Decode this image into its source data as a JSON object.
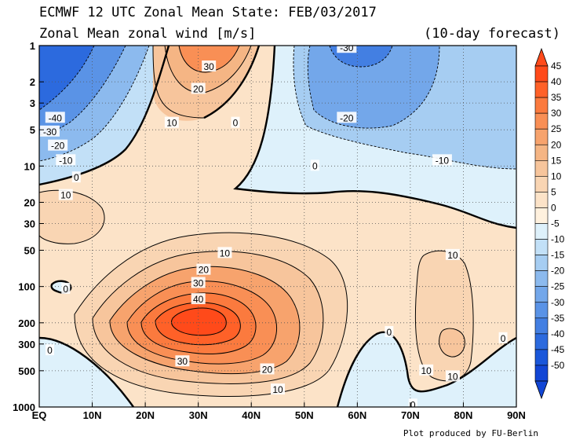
{
  "header": {
    "title": "ECMWF 12 UTC Zonal Mean State: FEB/03/2017",
    "subtitle": "Zonal Mean zonal wind [m/s]",
    "forecast": "(10-day forecast)"
  },
  "footer": {
    "credit": "Plot produced by FU-Berlin"
  },
  "chart_data": {
    "type": "heatmap",
    "x_ticks": [
      "EQ",
      "10N",
      "20N",
      "30N",
      "40N",
      "50N",
      "60N",
      "70N",
      "80N",
      "90N"
    ],
    "x_values": [
      0,
      10,
      20,
      30,
      40,
      50,
      60,
      70,
      80,
      90
    ],
    "xlim": [
      0,
      90
    ],
    "y_ticks": [
      "1",
      "2",
      "3",
      "5",
      "10",
      "20",
      "30",
      "50",
      "100",
      "200",
      "300",
      "500",
      "1000"
    ],
    "y_values": [
      1,
      2,
      3,
      5,
      10,
      20,
      30,
      50,
      100,
      200,
      300,
      500,
      1000
    ],
    "ylim": [
      1,
      1000
    ],
    "y_scale": "log",
    "y_inverted": true,
    "grid": "dotted",
    "colorbar": {
      "labels": [
        "45",
        "40",
        "35",
        "30",
        "25",
        "20",
        "15",
        "10",
        "5",
        "0",
        "-5",
        "-10",
        "-15",
        "-20",
        "-25",
        "-30",
        "-35",
        "-40",
        "-45",
        "-50"
      ],
      "colors": [
        "#ff4a1a",
        "#ff6128",
        "#fb7a3e",
        "#f98f55",
        "#f7a36d",
        "#f5b584",
        "#f7c59c",
        "#f9d5b3",
        "#fce3c8",
        "#fff1de",
        "#def1fb",
        "#c2e0f7",
        "#a6cdf2",
        "#8cbaee",
        "#73a7ea",
        "#5a93e6",
        "#437fe2",
        "#2c6ade",
        "#1a57da",
        "#1246d5"
      ]
    },
    "contour_labels": [
      {
        "text": "30",
        "lat": 32,
        "p": 1.5
      },
      {
        "text": "20",
        "lat": 30,
        "p": 2.3
      },
      {
        "text": "10",
        "lat": 25,
        "p": 4.4
      },
      {
        "text": "0",
        "lat": 37,
        "p": 4.4
      },
      {
        "text": "-30",
        "lat": 58,
        "p": 1.05
      },
      {
        "text": "-20",
        "lat": 58,
        "p": 4.0
      },
      {
        "text": "-10",
        "lat": 76,
        "p": 9.0
      },
      {
        "text": "-40",
        "lat": 3,
        "p": 4.0
      },
      {
        "text": "-30",
        "lat": 2,
        "p": 5.2
      },
      {
        "text": "-20",
        "lat": 3.5,
        "p": 6.8
      },
      {
        "text": "-10",
        "lat": 5,
        "p": 9.0
      },
      {
        "text": "0",
        "lat": 7,
        "p": 12.5
      },
      {
        "text": "0",
        "lat": 52,
        "p": 10.0
      },
      {
        "text": "10",
        "lat": 5,
        "p": 17.5
      },
      {
        "text": "10",
        "lat": 35,
        "p": 53.0
      },
      {
        "text": "20",
        "lat": 31,
        "p": 73.0
      },
      {
        "text": "30",
        "lat": 30,
        "p": 94.0
      },
      {
        "text": "40",
        "lat": 30,
        "p": 128.0
      },
      {
        "text": "30",
        "lat": 27,
        "p": 420.0
      },
      {
        "text": "20",
        "lat": 43,
        "p": 490.0
      },
      {
        "text": "10",
        "lat": 45,
        "p": 720.0
      },
      {
        "text": "0",
        "lat": 5,
        "p": 105.0
      },
      {
        "text": "0",
        "lat": 2,
        "p": 340.0
      },
      {
        "text": "0",
        "lat": 66,
        "p": 240.0
      },
      {
        "text": "10",
        "lat": 78,
        "p": 55.0
      },
      {
        "text": "10",
        "lat": 73,
        "p": 500.0
      },
      {
        "text": "10",
        "lat": 78,
        "p": 560.0
      },
      {
        "text": "0",
        "lat": 87.5,
        "p": 270.0
      },
      {
        "text": "0",
        "lat": 70.5,
        "p": 960.0
      }
    ]
  }
}
